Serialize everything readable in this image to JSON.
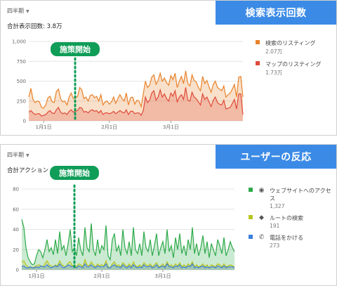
{
  "panels": [
    {
      "period": "四半期",
      "total": "合計表示回数: 3.8万",
      "banner": "検索表示回数",
      "measure_label": "施策開始",
      "legend": [
        {
          "label": "検索のリスティング",
          "value": "2.07万",
          "color": "#e8822a"
        },
        {
          "label": "マップのリスティング",
          "value": "1.73万",
          "color": "#e04a3a"
        }
      ]
    },
    {
      "period": "四半期",
      "total": "合計アクション",
      "banner": "ユーザーの反応",
      "measure_label": "施策開始",
      "legend": [
        {
          "label": "ウェブサイトへのアクセス",
          "value": "1,327",
          "color": "#2eaa4a",
          "icon": "globe-icon",
          "glyph": "◉"
        },
        {
          "label": "ルートの検索",
          "value": "191",
          "color": "#b7c520",
          "icon": "directions-icon",
          "glyph": "◆"
        },
        {
          "label": "電話をかける",
          "value": "273",
          "color": "#3a7fdc",
          "icon": "phone-icon",
          "glyph": "✆"
        }
      ]
    }
  ],
  "chart_data": [
    {
      "type": "area",
      "ylim": [
        0,
        1000
      ],
      "yticks": [
        "0",
        "250",
        "500",
        "750",
        "1,000"
      ],
      "xticks": [
        "1月1日",
        "2月1日",
        "3月1日"
      ],
      "x_start": "2019-12-25",
      "series": [
        {
          "name": "検索のリスティング",
          "color": "#e8822a",
          "values": [
            300,
            410,
            270,
            230,
            250,
            240,
            170,
            160,
            200,
            290,
            310,
            240,
            230,
            370,
            400,
            280,
            240,
            250,
            200,
            300,
            350,
            280,
            290,
            310,
            420,
            390,
            280,
            300,
            250,
            320,
            330,
            290,
            310,
            250,
            330,
            200,
            240,
            250,
            210,
            240,
            300,
            220,
            280,
            330,
            280,
            250,
            350,
            200,
            290,
            300,
            210,
            260,
            250,
            180,
            340,
            500,
            420,
            450,
            550,
            580,
            460,
            510,
            600,
            500,
            540,
            480,
            450,
            570,
            520,
            600,
            420,
            500,
            560,
            470,
            630,
            470,
            440,
            580,
            510,
            490,
            420,
            380,
            560,
            470,
            510,
            430,
            360,
            460,
            500,
            420,
            400,
            380,
            440,
            300,
            330,
            350,
            400,
            460,
            300,
            550,
            560,
            300
          ]
        },
        {
          "name": "マップのリスティング",
          "color": "#e04a3a",
          "values": [
            110,
            130,
            100,
            80,
            90,
            90,
            60,
            70,
            80,
            110,
            130,
            100,
            90,
            140,
            170,
            110,
            90,
            100,
            80,
            120,
            140,
            110,
            120,
            130,
            170,
            160,
            110,
            120,
            100,
            130,
            140,
            120,
            130,
            100,
            130,
            80,
            100,
            100,
            90,
            100,
            120,
            90,
            110,
            130,
            110,
            100,
            140,
            80,
            120,
            120,
            90,
            100,
            100,
            70,
            130,
            300,
            230,
            260,
            350,
            380,
            260,
            300,
            390,
            300,
            340,
            280,
            250,
            350,
            310,
            380,
            240,
            300,
            330,
            270,
            420,
            260,
            250,
            360,
            300,
            280,
            240,
            200,
            340,
            270,
            300,
            240,
            180,
            260,
            300,
            230,
            210,
            200,
            260,
            150,
            160,
            170,
            220,
            270,
            150,
            340,
            340,
            80
          ]
        }
      ]
    },
    {
      "type": "area",
      "ylim": [
        0,
        80
      ],
      "yticks": [
        "0",
        "20",
        "40",
        "60",
        "80"
      ],
      "xticks": [
        "1月1日",
        "2月1日",
        "3月1日"
      ],
      "x_start": "2019-12-25",
      "series": [
        {
          "name": "ウェブサイトへのアクセス",
          "color": "#2eaa4a",
          "values": [
            50,
            42,
            22,
            12,
            8,
            5,
            6,
            14,
            20,
            18,
            12,
            20,
            30,
            18,
            22,
            15,
            30,
            16,
            38,
            20,
            24,
            14,
            26,
            40,
            18,
            22,
            14,
            32,
            20,
            14,
            42,
            22,
            18,
            46,
            20,
            14,
            30,
            16,
            24,
            20,
            44,
            14,
            10,
            30,
            36,
            18,
            24,
            14,
            40,
            22,
            16,
            28,
            14,
            42,
            20,
            16,
            26,
            14,
            38,
            22,
            18,
            30,
            14,
            24,
            36,
            14,
            22,
            28,
            16,
            40,
            18,
            24,
            12,
            32,
            20,
            36,
            16,
            24,
            14,
            30,
            20,
            42,
            16,
            26,
            14,
            22,
            34,
            16,
            28,
            12,
            26,
            20,
            14,
            30,
            24,
            16,
            32,
            14,
            20,
            28,
            22,
            18
          ]
        },
        {
          "name": "ルートの検索",
          "color": "#b7c520",
          "values": [
            8,
            9,
            5,
            3,
            2,
            2,
            3,
            4,
            5,
            4,
            3,
            6,
            9,
            5,
            4,
            3,
            5,
            4,
            9,
            5,
            4,
            3,
            7,
            8,
            4,
            5,
            3,
            6,
            5,
            3,
            10,
            5,
            4,
            8,
            5,
            3,
            6,
            4,
            5,
            4,
            9,
            3,
            2,
            6,
            8,
            4,
            5,
            3,
            7,
            5,
            3,
            6,
            3,
            8,
            4,
            3,
            5,
            3,
            7,
            5,
            4,
            6,
            3,
            5,
            7,
            3,
            4,
            6,
            3,
            8,
            4,
            5,
            3,
            6,
            4,
            7,
            3,
            5,
            3,
            6,
            4,
            8,
            3,
            5,
            3,
            4,
            6,
            3,
            5,
            2,
            5,
            4,
            3,
            6,
            5,
            3,
            6,
            3,
            4,
            5,
            4,
            3
          ]
        },
        {
          "name": "電話をかける",
          "color": "#3a7fdc",
          "values": [
            3,
            4,
            2,
            2,
            3,
            2,
            2,
            3,
            2,
            4,
            3,
            3,
            5,
            3,
            2,
            3,
            4,
            3,
            6,
            3,
            2,
            3,
            5,
            4,
            3,
            3,
            2,
            4,
            3,
            2,
            6,
            3,
            3,
            5,
            3,
            2,
            4,
            3,
            3,
            3,
            6,
            2,
            2,
            4,
            5,
            3,
            3,
            2,
            5,
            3,
            2,
            4,
            2,
            5,
            3,
            2,
            3,
            2,
            5,
            3,
            3,
            4,
            2,
            3,
            5,
            2,
            3,
            4,
            2,
            6,
            3,
            3,
            2,
            4,
            3,
            5,
            2,
            3,
            2,
            4,
            3,
            6,
            2,
            3,
            2,
            3,
            4,
            2,
            3,
            2,
            3,
            3,
            2,
            4,
            3,
            2,
            4,
            2,
            3,
            3,
            3,
            2
          ]
        }
      ]
    }
  ]
}
